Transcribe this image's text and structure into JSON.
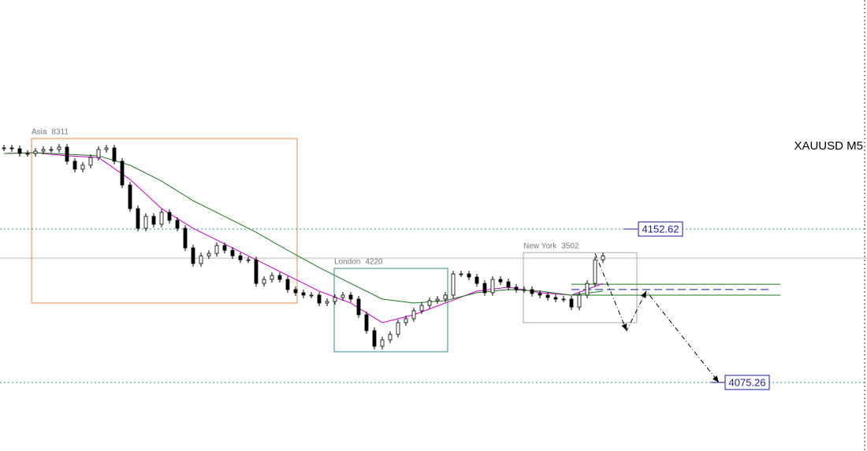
{
  "chart_data": {
    "type": "candlestick",
    "title": "XAUUSD M5",
    "xlim": [
      -0.5,
      109.5
    ],
    "ylim": [
      4040.7,
      4268.1
    ],
    "close": [
      4193.5,
      4193.1,
      4190.7,
      4190.7,
      4191.9,
      4192.7,
      4192.7,
      4193.9,
      4186.8,
      4182.8,
      4184.8,
      4188.7,
      4192.7,
      4193.5,
      4186.8,
      4174.8,
      4162.9,
      4153.0,
      4159.0,
      4155.0,
      4161.0,
      4157.0,
      4153.0,
      4143.1,
      4135.2,
      4139.1,
      4140.3,
      4144.3,
      4141.9,
      4139.1,
      4137.1,
      4137.1,
      4125.2,
      4127.2,
      4129.2,
      4127.2,
      4122.1,
      4120.5,
      4119.3,
      4119.3,
      4115.3,
      4116.1,
      4118.1,
      4119.3,
      4117.3,
      4109.4,
      4101.4,
      4093.5,
      4096.7,
      4099.5,
      4105.4,
      4107.4,
      4111.4,
      4114.1,
      4116.5,
      4117.3,
      4119.3,
      4130.0,
      4130.0,
      4128.4,
      4125.2,
      4120.5,
      4127.2,
      4126.0,
      4123.3,
      4122.1,
      4122.1,
      4120.1,
      4119.3,
      4118.1,
      4117.3,
      4117.3,
      4113.3,
      4119.3,
      4125.2,
      4137.1,
      4139.1
    ],
    "ma_x": [
      0,
      4,
      8,
      12,
      16,
      20,
      24,
      28,
      32,
      36,
      40,
      44,
      48,
      52,
      56,
      60,
      64,
      68,
      72,
      76
    ],
    "series": [
      {
        "color": "#cc00cc",
        "values": [
          4190.7,
          4191.1,
          4189.5,
          4188.7,
          4177.6,
          4162.9,
          4153.0,
          4145.1,
          4137.1,
          4129.2,
          4121.3,
          4115.3,
          4105.4,
          4109.4,
          4115.3,
          4121.3,
          4123.3,
          4120.5,
          4119.3,
          4125.2
        ]
      },
      {
        "color": "#1a7a1a",
        "values": [
          4190.7,
          4191.1,
          4190.3,
          4189.5,
          4184.8,
          4176.8,
          4166.9,
          4159.0,
          4151.0,
          4141.9,
          4133.2,
          4125.2,
          4117.3,
          4115.3,
          4116.5,
          4120.5,
          4122.1,
          4121.3,
          4119.3,
          4121.3
        ]
      }
    ],
    "sessions": [
      {
        "name": "Asia",
        "value": 8311,
        "start": 3.5,
        "end": 37.2,
        "high": 4198.24,
        "low": 4115.33,
        "color": "#e8884a"
      },
      {
        "name": "London",
        "value": 4220,
        "start": 41.9,
        "end": 56.3,
        "high": 4132.78,
        "low": 4090.73,
        "color": "#3a8a8a"
      },
      {
        "name": "New York",
        "value": 3502,
        "start": 65.9,
        "end": 80.3,
        "high": 4140.72,
        "low": 4105.41,
        "color": "#aaaaaa"
      }
    ],
    "levels": [
      {
        "value": 4152.62,
        "label_at": 80.5
      },
      {
        "value": 4075.26,
        "label_at": 91.5
      }
    ],
    "current_price": 4137.94,
    "zone": {
      "start": 72,
      "end": 98.5,
      "upper": 4124.8,
      "lower": 4119.3,
      "mid": 4122.1
    },
    "projection": {
      "x": [
        75,
        79,
        81.5,
        90.7
      ],
      "y": [
        4140.3,
        4101.4,
        4121.3,
        4075.26
      ]
    }
  }
}
